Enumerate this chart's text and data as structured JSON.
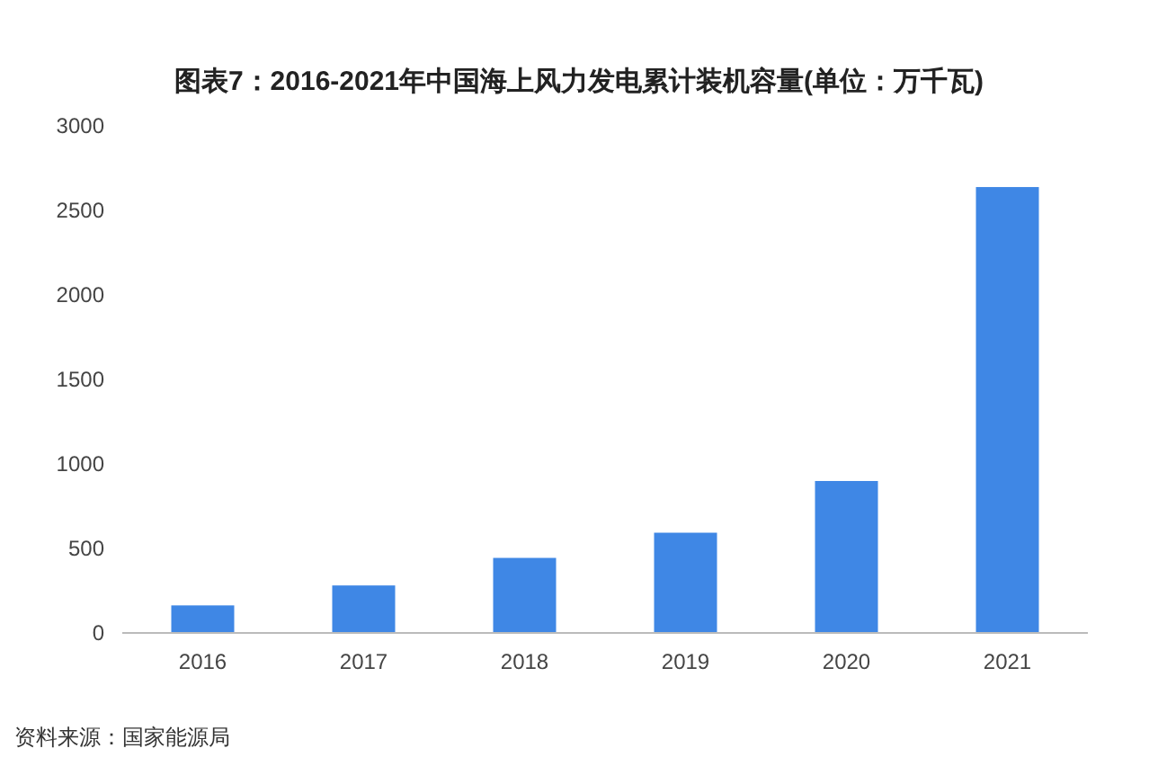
{
  "chart_data": {
    "type": "bar",
    "title": "图表7：2016-2021年中国海上风力发电累计装机容量(单位：万千瓦)",
    "categories": [
      "2016",
      "2017",
      "2018",
      "2019",
      "2020",
      "2021"
    ],
    "values": [
      163,
      281,
      444,
      593,
      899,
      2638
    ],
    "color": "#3f87e5",
    "ylim": [
      0,
      3000
    ],
    "yticks": [
      0,
      500,
      1000,
      1500,
      2000,
      2500,
      3000
    ],
    "annotations": [
      "资料来源：国家能源局"
    ]
  }
}
